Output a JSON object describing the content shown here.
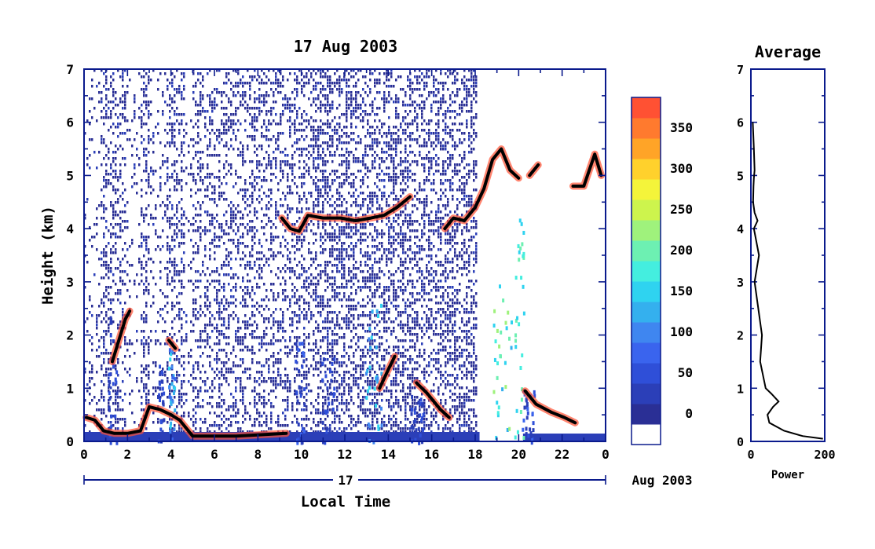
{
  "colors": {
    "axis": "#0a1a8c",
    "scale": [
      "#ffffff",
      "#2a2f95",
      "#2b3fb8",
      "#2f4fd8",
      "#3a64ee",
      "#3f86f0",
      "#34b0ee",
      "#2fd3f0",
      "#44eedf",
      "#6df0b2",
      "#9ff27c",
      "#cdf44d",
      "#f4f43a",
      "#ffd12c",
      "#ffa427",
      "#ff7a2e",
      "#ff5133",
      "#ee2f2f"
    ],
    "echo": "#000000"
  },
  "chart_data": [
    {
      "type": "heatmap",
      "title": "17 Aug 2003",
      "xlabel": "Local Time",
      "ylabel": "Height (km)",
      "xlim": [
        0,
        24
      ],
      "ylim": [
        0,
        7
      ],
      "x_ticks": [
        "0",
        "2",
        "4",
        "6",
        "8",
        "10",
        "12",
        "14",
        "16",
        "18",
        "20",
        "22",
        "0"
      ],
      "y_ticks": [
        "0",
        "1",
        "2",
        "3",
        "4",
        "5",
        "6",
        "7"
      ],
      "date_bar_label": "17",
      "date_suffix": "Aug 2003",
      "colorbar": {
        "levels": [
          0,
          25,
          50,
          75,
          100,
          125,
          150,
          175,
          200,
          225,
          250,
          275,
          300,
          325,
          350,
          375
        ],
        "tick_labels": [
          "0",
          "50",
          "100",
          "150",
          "200",
          "250",
          "300",
          "350"
        ],
        "max": 375
      },
      "layers": [
        {
          "name": "boundary layer",
          "points": [
            [
              0.1,
              0.45
            ],
            [
              0.5,
              0.4
            ],
            [
              0.9,
              0.2
            ],
            [
              1.4,
              0.15
            ],
            [
              2.0,
              0.15
            ],
            [
              2.6,
              0.2
            ],
            [
              3.0,
              0.65
            ],
            [
              3.5,
              0.6
            ],
            [
              4.0,
              0.5
            ],
            [
              4.4,
              0.4
            ],
            [
              5.0,
              0.1
            ],
            [
              7.0,
              0.1
            ],
            [
              9.3,
              0.15
            ]
          ]
        },
        {
          "name": "rising layer",
          "points": [
            [
              1.3,
              1.5
            ],
            [
              1.6,
              1.9
            ],
            [
              1.9,
              2.3
            ],
            [
              2.1,
              2.45
            ]
          ]
        },
        {
          "name": "elevated layer",
          "points": [
            [
              3.9,
              1.9
            ],
            [
              4.2,
              1.75
            ]
          ]
        },
        {
          "name": "mid layer",
          "points": [
            [
              9.1,
              4.2
            ],
            [
              9.5,
              4.0
            ],
            [
              9.9,
              3.95
            ],
            [
              10.3,
              4.25
            ],
            [
              11.0,
              4.2
            ],
            [
              11.8,
              4.2
            ],
            [
              12.5,
              4.15
            ],
            [
              13.2,
              4.2
            ],
            [
              13.8,
              4.25
            ],
            [
              14.4,
              4.4
            ],
            [
              15.0,
              4.6
            ]
          ]
        },
        {
          "name": "afternoon layer",
          "points": [
            [
              16.6,
              4.0
            ],
            [
              17.0,
              4.2
            ],
            [
              17.5,
              4.15
            ],
            [
              18.0,
              4.4
            ],
            [
              18.4,
              4.75
            ],
            [
              18.8,
              5.3
            ],
            [
              19.2,
              5.5
            ],
            [
              19.6,
              5.1
            ],
            [
              20.0,
              4.95
            ]
          ]
        },
        {
          "name": "evening layer",
          "points": [
            [
              20.5,
              5.0
            ],
            [
              20.9,
              5.2
            ]
          ]
        },
        {
          "name": "night layer",
          "points": [
            [
              22.5,
              4.8
            ],
            [
              23.0,
              4.8
            ],
            [
              23.5,
              5.4
            ],
            [
              23.8,
              5.0
            ]
          ]
        },
        {
          "name": "descending layer",
          "points": [
            [
              15.3,
              1.1
            ],
            [
              15.8,
              0.9
            ],
            [
              16.4,
              0.6
            ],
            [
              16.8,
              0.45
            ]
          ]
        },
        {
          "name": "low layer",
          "points": [
            [
              13.6,
              1.0
            ],
            [
              14.0,
              1.35
            ],
            [
              14.3,
              1.6
            ]
          ]
        },
        {
          "name": "evening boundary",
          "points": [
            [
              20.3,
              0.95
            ],
            [
              20.8,
              0.7
            ],
            [
              21.5,
              0.55
            ],
            [
              22.1,
              0.45
            ],
            [
              22.6,
              0.35
            ]
          ]
        }
      ]
    },
    {
      "type": "line",
      "title": "Average",
      "xlabel": "Power",
      "ylabel": "",
      "xlim": [
        0,
        200
      ],
      "ylim": [
        0,
        7
      ],
      "x_ticks": [
        "0",
        "200"
      ],
      "y_ticks": [
        "0",
        "1",
        "2",
        "3",
        "4",
        "5",
        "6",
        "7"
      ],
      "x": [
        5,
        8,
        10,
        8,
        7,
        6,
        10,
        18,
        8,
        22,
        10,
        30,
        25,
        40,
        55,
        75,
        60,
        45,
        50,
        90,
        140,
        195
      ],
      "y": [
        6.0,
        5.5,
        5.1,
        4.95,
        4.8,
        4.5,
        4.3,
        4.15,
        4.0,
        3.5,
        3.0,
        2.0,
        1.5,
        1.0,
        0.9,
        0.75,
        0.65,
        0.5,
        0.35,
        0.2,
        0.1,
        0.05
      ]
    }
  ]
}
